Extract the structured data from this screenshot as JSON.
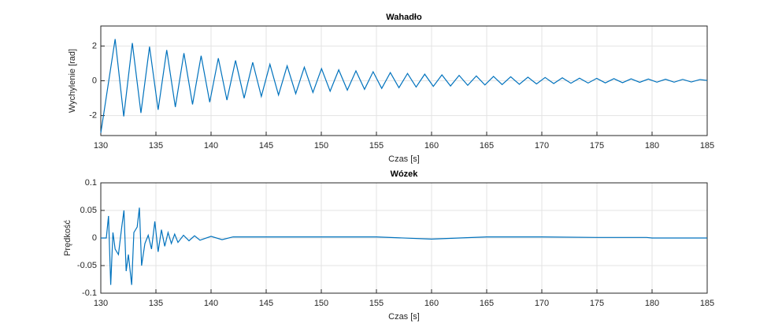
{
  "chart_data": [
    {
      "type": "line",
      "title": "Wahadło",
      "x_label": "Czas [s]",
      "y_label": "Wychylenie [rad]",
      "xlim": [
        130,
        185
      ],
      "xticks": [
        130,
        135,
        140,
        145,
        150,
        155,
        160,
        165,
        170,
        175,
        180,
        185
      ],
      "ylim": [
        -3.15,
        3.15
      ],
      "yticks": [
        -2,
        0,
        2
      ],
      "grid": true,
      "series": [
        {
          "color": "#0072bd",
          "x": [
            130,
            131.3,
            132.08,
            132.86,
            133.64,
            134.42,
            135.2,
            135.98,
            136.76,
            137.54,
            138.32,
            139.1,
            139.88,
            140.66,
            141.44,
            142.22,
            143,
            143.78,
            144.56,
            145.34,
            146.12,
            146.9,
            147.68,
            148.46,
            149.24,
            150.02,
            150.8,
            151.58,
            152.36,
            153.14,
            153.92,
            154.7,
            155.48,
            156.26,
            157.04,
            157.82,
            158.6,
            159.38,
            160.16,
            160.94,
            161.72,
            162.5,
            163.28,
            164.06,
            164.84,
            165.62,
            166.4,
            167.18,
            167.96,
            168.74,
            169.52,
            170.3,
            171.08,
            171.86,
            172.64,
            173.42,
            174.2,
            174.98,
            175.76,
            176.54,
            177.32,
            178.1,
            178.88,
            179.66,
            180.44,
            181.22,
            182,
            182.78,
            183.56,
            184.34,
            185
          ],
          "values": [
            -3.0,
            2.4,
            -2.05,
            2.17,
            -1.85,
            1.96,
            -1.67,
            1.77,
            -1.51,
            1.59,
            -1.36,
            1.44,
            -1.23,
            1.3,
            -1.11,
            1.17,
            -1.0,
            1.06,
            -0.9,
            0.95,
            -0.82,
            0.86,
            -0.74,
            0.78,
            -0.67,
            0.7,
            -0.6,
            0.63,
            -0.54,
            0.57,
            -0.49,
            0.52,
            -0.44,
            0.47,
            -0.4,
            0.42,
            -0.36,
            0.38,
            -0.32,
            0.34,
            -0.3,
            0.31,
            -0.26,
            0.28,
            -0.24,
            0.25,
            -0.22,
            0.23,
            -0.2,
            0.21,
            -0.18,
            0.19,
            -0.16,
            0.17,
            -0.14,
            0.15,
            -0.13,
            0.14,
            -0.12,
            0.12,
            -0.11,
            0.11,
            -0.09,
            0.1,
            -0.08,
            0.09,
            -0.08,
            0.08,
            -0.07,
            0.07,
            0.02
          ]
        }
      ]
    },
    {
      "type": "line",
      "title": "Wózek",
      "x_label": "Czas [s]",
      "y_label": "Prędkość",
      "xlim": [
        130,
        185
      ],
      "xticks": [
        130,
        135,
        140,
        145,
        150,
        155,
        160,
        165,
        170,
        175,
        180,
        185
      ],
      "ylim": [
        -0.1,
        0.1
      ],
      "yticks": [
        -0.1,
        -0.05,
        0,
        0.05,
        0.1
      ],
      "grid": true,
      "series": [
        {
          "color": "#0072bd",
          "x": [
            130,
            130.5,
            130.7,
            130.9,
            131.1,
            131.3,
            131.6,
            131.9,
            132.1,
            132.3,
            132.5,
            132.8,
            133,
            133.3,
            133.5,
            133.7,
            134,
            134.3,
            134.6,
            134.9,
            135.2,
            135.5,
            135.8,
            136.1,
            136.4,
            136.7,
            137,
            137.5,
            138,
            138.5,
            139,
            140,
            141,
            142,
            145,
            150,
            155,
            160,
            165,
            170,
            175,
            179.5,
            180,
            185
          ],
          "values": [
            0,
            0,
            0.04,
            -0.085,
            0.01,
            -0.02,
            -0.03,
            0.02,
            0.05,
            -0.06,
            -0.03,
            -0.085,
            0.01,
            0.02,
            0.055,
            -0.05,
            -0.01,
            0.005,
            -0.02,
            0.03,
            -0.025,
            0.015,
            -0.015,
            0.01,
            -0.01,
            0.007,
            -0.008,
            0.005,
            -0.005,
            0.004,
            -0.004,
            0.003,
            -0.003,
            0.002,
            0.002,
            0.002,
            0.002,
            -0.002,
            0.002,
            0.002,
            0.001,
            0.001,
            0,
            0
          ]
        }
      ]
    }
  ]
}
